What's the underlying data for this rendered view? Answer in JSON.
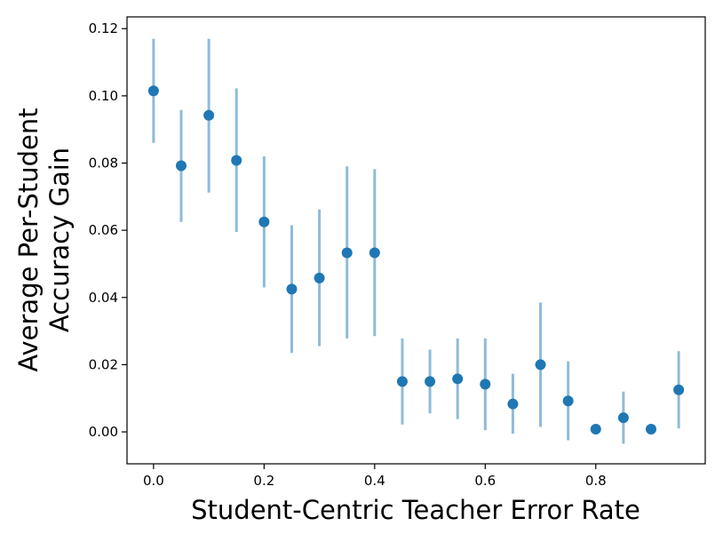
{
  "chart_data": {
    "type": "scatter",
    "title": "",
    "xlabel": "Student-Centric Teacher Error Rate",
    "ylabel_lines": [
      "Average Per-Student",
      "Accuracy Gain"
    ],
    "xlim": [
      -0.048,
      0.998
    ],
    "ylim": [
      -0.0095,
      0.1235
    ],
    "xticks": [
      0.0,
      0.2,
      0.4,
      0.6,
      0.8
    ],
    "xtick_labels": [
      "0.0",
      "0.2",
      "0.4",
      "0.6",
      "0.8"
    ],
    "yticks": [
      0.0,
      0.02,
      0.04,
      0.06,
      0.08,
      0.1,
      0.12
    ],
    "ytick_labels": [
      "0.00",
      "0.02",
      "0.04",
      "0.06",
      "0.08",
      "0.10",
      "0.12"
    ],
    "grid": false,
    "point_color": "#1f77b4",
    "errorbar_color": "#8fbbd9",
    "series": [
      {
        "x": [
          0.0,
          0.05,
          0.1,
          0.15,
          0.2,
          0.25,
          0.3,
          0.35,
          0.4,
          0.45,
          0.5,
          0.55,
          0.6,
          0.65,
          0.7,
          0.75,
          0.8,
          0.85,
          0.9,
          0.95
        ],
        "y": [
          0.1015,
          0.0792,
          0.0942,
          0.0808,
          0.0625,
          0.0425,
          0.0458,
          0.0533,
          0.0533,
          0.015,
          0.015,
          0.0158,
          0.0142,
          0.0083,
          0.02,
          0.0092,
          0.0008,
          0.0042,
          0.0008,
          0.0125
        ],
        "y_low": [
          0.086,
          0.0625,
          0.0712,
          0.0595,
          0.043,
          0.0235,
          0.0255,
          0.0278,
          0.0285,
          0.0022,
          0.0055,
          0.0038,
          0.0005,
          -0.0005,
          0.0015,
          -0.0025,
          0.0008,
          -0.0035,
          0.0008,
          0.001
        ],
        "y_high": [
          0.117,
          0.0958,
          0.117,
          0.1022,
          0.082,
          0.0615,
          0.0662,
          0.079,
          0.0782,
          0.0278,
          0.0245,
          0.0278,
          0.0278,
          0.0173,
          0.0385,
          0.021,
          0.0008,
          0.012,
          0.0008,
          0.024
        ]
      }
    ]
  }
}
